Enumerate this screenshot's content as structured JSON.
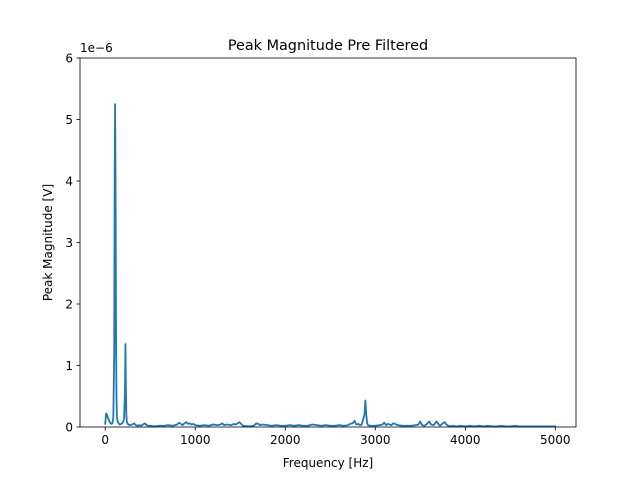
{
  "chart_data": {
    "type": "line",
    "title": "Peak Magnitude Pre Filtered",
    "xlabel": "Frequency [Hz]",
    "ylabel": "Peak Magnitude [V]",
    "y_multiplier_label": "1e−6",
    "xlim": [
      -280,
      5230
    ],
    "ylim": [
      0,
      6
    ],
    "x_ticks": [
      0,
      1000,
      2000,
      3000,
      4000,
      5000
    ],
    "x_tick_labels": [
      "0",
      "1000",
      "2000",
      "3000",
      "4000",
      "5000"
    ],
    "y_ticks": [
      0,
      1,
      2,
      3,
      4,
      5,
      6
    ],
    "y_tick_labels": [
      "0",
      "1",
      "2",
      "3",
      "4",
      "5",
      "6"
    ],
    "grid": false,
    "series": [
      {
        "color": "#1f77b4",
        "x": [
          0,
          10,
          20,
          30,
          40,
          50,
          60,
          70,
          80,
          90,
          100,
          105,
          110,
          115,
          120,
          125,
          130,
          140,
          160,
          180,
          200,
          210,
          220,
          225,
          230,
          235,
          240,
          250,
          270,
          300,
          320,
          340,
          360,
          380,
          400,
          420,
          440,
          460,
          480,
          500,
          550,
          600,
          650,
          700,
          750,
          800,
          820,
          840,
          860,
          880,
          900,
          920,
          940,
          960,
          980,
          1000,
          1050,
          1100,
          1150,
          1200,
          1250,
          1280,
          1300,
          1320,
          1350,
          1400,
          1430,
          1450,
          1470,
          1490,
          1510,
          1530,
          1600,
          1650,
          1680,
          1700,
          1720,
          1750,
          1800,
          1850,
          1900,
          1950,
          2000,
          2050,
          2100,
          2150,
          2200,
          2250,
          2300,
          2350,
          2400,
          2450,
          2500,
          2550,
          2600,
          2650,
          2700,
          2720,
          2750,
          2770,
          2790,
          2810,
          2830,
          2850,
          2880,
          2890,
          2900,
          2910,
          2920,
          2940,
          2960,
          3000,
          3050,
          3080,
          3100,
          3120,
          3140,
          3180,
          3200,
          3220,
          3250,
          3300,
          3350,
          3400,
          3450,
          3480,
          3500,
          3520,
          3550,
          3580,
          3600,
          3620,
          3650,
          3680,
          3700,
          3720,
          3750,
          3770,
          3790,
          3810,
          3830,
          3860,
          3900,
          3950,
          4000,
          4050,
          4100,
          4150,
          4200,
          4250,
          4300,
          4350,
          4400,
          4450,
          4500,
          4550,
          4600,
          4650,
          4700,
          4750,
          4800,
          4850,
          4900,
          4950,
          5000
        ],
        "y": [
          0.05,
          0.22,
          0.2,
          0.15,
          0.12,
          0.08,
          0.06,
          0.05,
          0.06,
          0.15,
          1.2,
          4.0,
          5.25,
          4.0,
          1.5,
          0.5,
          0.15,
          0.08,
          0.04,
          0.05,
          0.08,
          0.15,
          0.6,
          1.35,
          0.6,
          0.2,
          0.08,
          0.05,
          0.03,
          0.04,
          0.06,
          0.03,
          0.02,
          0.03,
          0.02,
          0.04,
          0.06,
          0.03,
          0.02,
          0.02,
          0.01,
          0.02,
          0.02,
          0.03,
          0.02,
          0.04,
          0.07,
          0.05,
          0.03,
          0.06,
          0.08,
          0.05,
          0.06,
          0.04,
          0.05,
          0.03,
          0.02,
          0.03,
          0.02,
          0.04,
          0.03,
          0.04,
          0.06,
          0.03,
          0.04,
          0.03,
          0.05,
          0.04,
          0.06,
          0.08,
          0.05,
          0.02,
          0.01,
          0.02,
          0.06,
          0.05,
          0.03,
          0.04,
          0.03,
          0.02,
          0.03,
          0.02,
          0.02,
          0.03,
          0.02,
          0.03,
          0.02,
          0.02,
          0.04,
          0.03,
          0.02,
          0.03,
          0.02,
          0.02,
          0.03,
          0.02,
          0.03,
          0.05,
          0.06,
          0.1,
          0.04,
          0.05,
          0.03,
          0.04,
          0.2,
          0.43,
          0.2,
          0.06,
          0.03,
          0.02,
          0.02,
          0.02,
          0.03,
          0.04,
          0.07,
          0.03,
          0.05,
          0.03,
          0.06,
          0.05,
          0.03,
          0.02,
          0.02,
          0.02,
          0.03,
          0.04,
          0.09,
          0.03,
          0.02,
          0.06,
          0.09,
          0.04,
          0.03,
          0.09,
          0.05,
          0.02,
          0.06,
          0.08,
          0.04,
          0.02,
          0.01,
          0.02,
          0.01,
          0.02,
          0.01,
          0.02,
          0.01,
          0.02,
          0.01,
          0.02,
          0.01,
          0.01,
          0.02,
          0.01,
          0.01,
          0.02,
          0.01,
          0.01,
          0.01,
          0.01,
          0.01,
          0.01,
          0.01,
          0.01,
          0.01
        ]
      }
    ]
  }
}
